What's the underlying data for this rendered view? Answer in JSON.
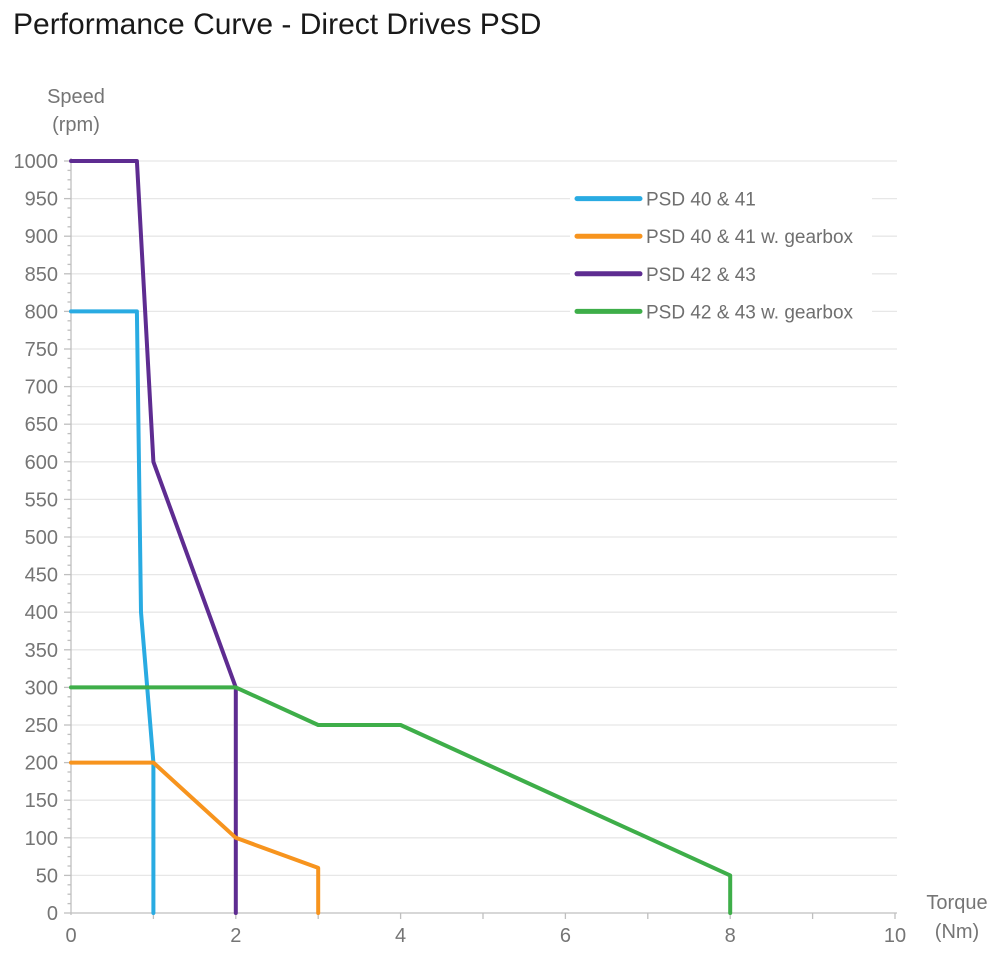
{
  "title": "Performance Curve - Direct Drives PSD",
  "colors": {
    "grid": "#E7E7E7",
    "axis": "#BFBFBF",
    "tick_text": "#757575",
    "legend_text": "#6F6F6F",
    "title_text": "#191919"
  },
  "chart_data": {
    "type": "line",
    "title": "Performance Curve - Direct Drives PSD",
    "xlabel": [
      "Torque",
      "(Nm)"
    ],
    "ylabel": [
      "Speed",
      "(rpm)"
    ],
    "xlim": [
      0,
      10
    ],
    "ylim": [
      0,
      1000
    ],
    "grid": "horizontal",
    "grid_step": 50,
    "x_tick_step": 1,
    "x_tick_labels": [
      0,
      2,
      4,
      6,
      8,
      10
    ],
    "y_tick_labels": [
      0,
      50,
      100,
      150,
      200,
      250,
      300,
      350,
      400,
      450,
      500,
      550,
      600,
      650,
      700,
      750,
      800,
      850,
      900,
      950,
      1000
    ],
    "y_minor_tick_step": 12.5,
    "legend_position": "inside-top-right",
    "series": [
      {
        "name": "PSD 40 & 41",
        "color": "#29ABE2",
        "points": [
          [
            0,
            800
          ],
          [
            0.8,
            800
          ],
          [
            0.85,
            400
          ],
          [
            1,
            200
          ],
          [
            1,
            0
          ]
        ]
      },
      {
        "name": "PSD 40 & 41 w. gearbox",
        "color": "#F7941E",
        "points": [
          [
            0,
            200
          ],
          [
            1,
            200
          ],
          [
            2,
            100
          ],
          [
            3,
            60
          ],
          [
            3,
            0
          ]
        ]
      },
      {
        "name": "PSD 42 & 43",
        "color": "#5E2C91",
        "points": [
          [
            0,
            1000
          ],
          [
            0.8,
            1000
          ],
          [
            1,
            600
          ],
          [
            2,
            300
          ],
          [
            2,
            0
          ]
        ]
      },
      {
        "name": "PSD 42 & 43 w. gearbox",
        "color": "#3EAE49",
        "points": [
          [
            0,
            300
          ],
          [
            2,
            300
          ],
          [
            3,
            250
          ],
          [
            4,
            250
          ],
          [
            8,
            50
          ],
          [
            8,
            0
          ]
        ]
      }
    ]
  }
}
